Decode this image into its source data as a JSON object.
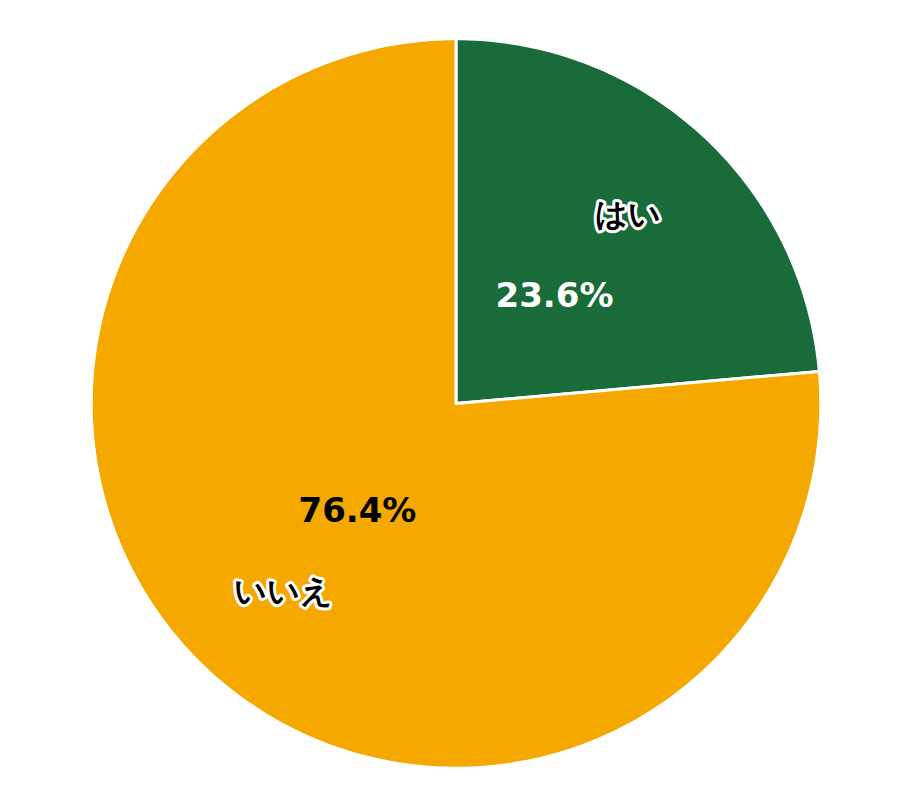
{
  "chart_data": {
    "type": "pie",
    "categories": [
      "はい",
      "いいえ"
    ],
    "values": [
      23.6,
      76.4
    ],
    "value_labels": [
      "23.6%",
      "76.4%"
    ],
    "colors": [
      "#1a6b3a",
      "#f5a800"
    ],
    "data_labels": true
  }
}
